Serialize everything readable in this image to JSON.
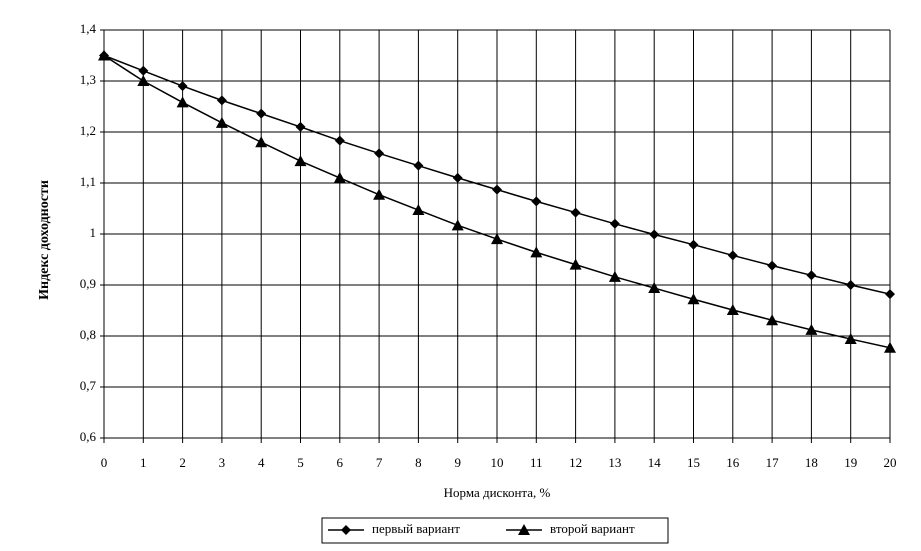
{
  "chart_data": {
    "type": "line",
    "x_label": "Норма дисконта, %",
    "y_label": "Индекс доходности",
    "x": [
      0,
      1,
      2,
      3,
      4,
      5,
      6,
      7,
      8,
      9,
      10,
      11,
      12,
      13,
      14,
      15,
      16,
      17,
      18,
      19,
      20
    ],
    "xlim": [
      0,
      20
    ],
    "xticks": [
      0,
      1,
      2,
      3,
      4,
      5,
      6,
      7,
      8,
      9,
      10,
      11,
      12,
      13,
      14,
      15,
      16,
      17,
      18,
      19,
      20
    ],
    "ylim": [
      0.6,
      1.4
    ],
    "yticks": [
      {
        "value": 0.6,
        "label": "0,6"
      },
      {
        "value": 0.7,
        "label": "0,7"
      },
      {
        "value": 0.8,
        "label": "0,8"
      },
      {
        "value": 0.9,
        "label": "0,9"
      },
      1,
      {
        "value": 1.1,
        "label": "1,1"
      },
      {
        "value": 1.2,
        "label": "1,2"
      },
      {
        "value": 1.3,
        "label": "1,3"
      },
      {
        "value": 1.4,
        "label": "1,4"
      }
    ],
    "grid": true,
    "legend": "bottom",
    "series": [
      {
        "name": "первый вариант",
        "color": "#000000",
        "marker": "diamond",
        "values": [
          1.35,
          1.32,
          1.29,
          1.262,
          1.236,
          1.21,
          1.183,
          1.158,
          1.134,
          1.11,
          1.087,
          1.064,
          1.042,
          1.02,
          0.999,
          0.979,
          0.958,
          0.938,
          0.919,
          0.9,
          0.882
        ]
      },
      {
        "name": "второй вариант",
        "color": "#000000",
        "marker": "triangle",
        "values": [
          1.35,
          1.3,
          1.258,
          1.218,
          1.18,
          1.143,
          1.11,
          1.077,
          1.047,
          1.017,
          0.99,
          0.964,
          0.94,
          0.916,
          0.894,
          0.872,
          0.851,
          0.831,
          0.812,
          0.794,
          0.777
        ]
      }
    ]
  }
}
